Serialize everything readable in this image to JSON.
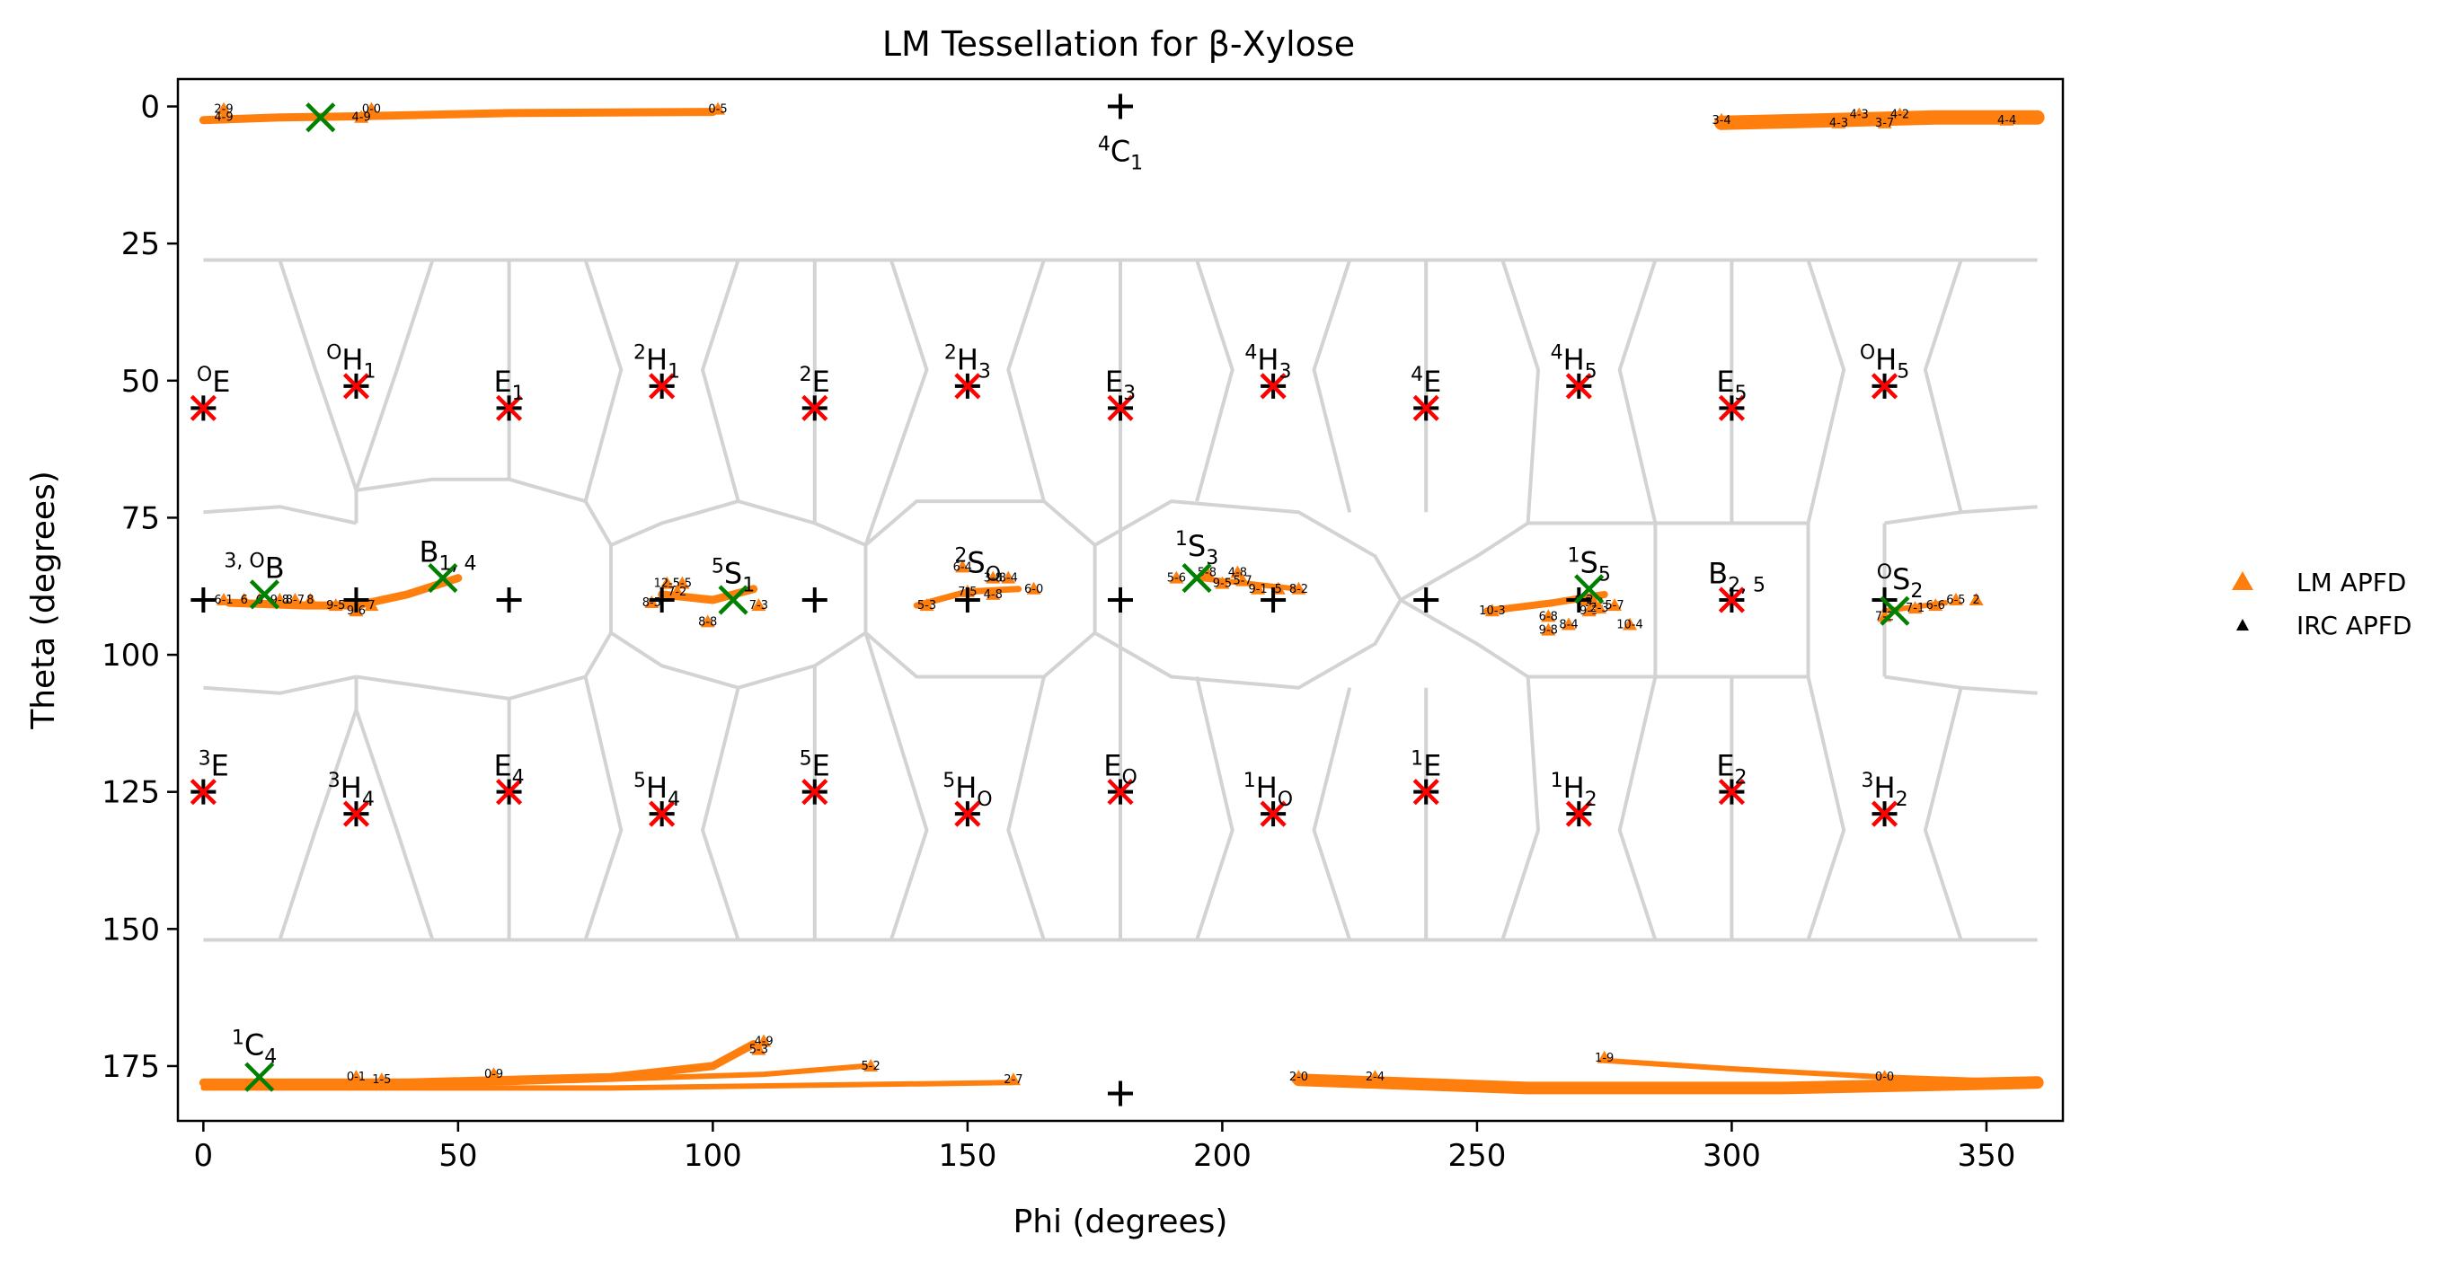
{
  "chart_data": {
    "type": "scatter",
    "title": "LM Tessellation for β-Xylose",
    "xlabel": "Phi (degrees)",
    "ylabel": "Theta (degrees)",
    "xlim": [
      -5,
      365
    ],
    "ylim": [
      185,
      -5
    ],
    "y_inverted": true,
    "xticks": [
      0,
      50,
      100,
      150,
      200,
      250,
      300,
      350
    ],
    "yticks": [
      0,
      25,
      50,
      75,
      100,
      125,
      150,
      175
    ],
    "grid": false,
    "legend_placement": "outside-right",
    "legend": [
      {
        "name": "LM APFD",
        "marker": "triangle",
        "color": "#ff7f0e"
      },
      {
        "name": "IRC APFD",
        "marker": "triangle-small",
        "color": "#000000"
      }
    ],
    "colors": {
      "tessellation": "#d3d3d3",
      "lm_apfd": "#ff7f0e",
      "reference": "#000000",
      "cluster_center": "#ff0000",
      "pathway_point": "#008000"
    },
    "pucker_labels": [
      {
        "sup": "4",
        "main": "C",
        "sub": "1",
        "x": 180,
        "y": 10
      },
      {
        "sup": "1",
        "main": "C",
        "sub": "4",
        "x": 10,
        "y": 173
      },
      {
        "sup": "O",
        "main": "E",
        "sub": "",
        "x": 2,
        "y": 52
      },
      {
        "sup": "O",
        "main": "H",
        "sub": "1",
        "x": 29,
        "y": 48
      },
      {
        "sup": "",
        "main": "E",
        "sub": "1",
        "x": 60,
        "y": 52
      },
      {
        "sup": "2",
        "main": "H",
        "sub": "1",
        "x": 89,
        "y": 48
      },
      {
        "sup": "2",
        "main": "E",
        "sub": "",
        "x": 120,
        "y": 52
      },
      {
        "sup": "2",
        "main": "H",
        "sub": "3",
        "x": 150,
        "y": 48
      },
      {
        "sup": "",
        "main": "E",
        "sub": "3",
        "x": 180,
        "y": 52
      },
      {
        "sup": "4",
        "main": "H",
        "sub": "3",
        "x": 209,
        "y": 48
      },
      {
        "sup": "4",
        "main": "E",
        "sub": "",
        "x": 240,
        "y": 52
      },
      {
        "sup": "4",
        "main": "H",
        "sub": "5",
        "x": 269,
        "y": 48
      },
      {
        "sup": "",
        "main": "E",
        "sub": "5",
        "x": 300,
        "y": 52
      },
      {
        "sup": "O",
        "main": "H",
        "sub": "5",
        "x": 330,
        "y": 48
      },
      {
        "sup": "3, O",
        "main": "B",
        "sub": "",
        "x": 10,
        "y": 86
      },
      {
        "sup": "",
        "main": "B",
        "sub": "1, 4",
        "x": 48,
        "y": 83
      },
      {
        "sup": "5",
        "main": "S",
        "sub": "1",
        "x": 104,
        "y": 87
      },
      {
        "sup": "2",
        "main": "S",
        "sub": "O",
        "x": 152,
        "y": 85
      },
      {
        "sup": "1",
        "main": "S",
        "sub": "3",
        "x": 195,
        "y": 82
      },
      {
        "sup": "1",
        "main": "S",
        "sub": "5",
        "x": 272,
        "y": 85
      },
      {
        "sup": "",
        "main": "B",
        "sub": "2, 5",
        "x": 301,
        "y": 87
      },
      {
        "sup": "O",
        "main": "S",
        "sub": "2",
        "x": 333,
        "y": 88
      },
      {
        "sup": "3",
        "main": "E",
        "sub": "",
        "x": 2,
        "y": 122
      },
      {
        "sup": "3",
        "main": "H",
        "sub": "4",
        "x": 29,
        "y": 126
      },
      {
        "sup": "",
        "main": "E",
        "sub": "4",
        "x": 60,
        "y": 122
      },
      {
        "sup": "5",
        "main": "H",
        "sub": "4",
        "x": 89,
        "y": 126
      },
      {
        "sup": "5",
        "main": "E",
        "sub": "",
        "x": 120,
        "y": 122
      },
      {
        "sup": "5",
        "main": "H",
        "sub": "O",
        "x": 150,
        "y": 126
      },
      {
        "sup": "",
        "main": "E",
        "sub": "O",
        "x": 180,
        "y": 122
      },
      {
        "sup": "1",
        "main": "H",
        "sub": "O",
        "x": 209,
        "y": 126
      },
      {
        "sup": "1",
        "main": "E",
        "sub": "",
        "x": 240,
        "y": 122
      },
      {
        "sup": "1",
        "main": "H",
        "sub": "2",
        "x": 269,
        "y": 126
      },
      {
        "sup": "",
        "main": "E",
        "sub": "2",
        "x": 300,
        "y": 122
      },
      {
        "sup": "3",
        "main": "H",
        "sub": "2",
        "x": 330,
        "y": 126
      }
    ],
    "reference_points": [
      {
        "x": 180,
        "y": 0
      },
      {
        "x": 180,
        "y": 180
      },
      {
        "x": 0,
        "y": 55
      },
      {
        "x": 30,
        "y": 51
      },
      {
        "x": 60,
        "y": 55
      },
      {
        "x": 90,
        "y": 51
      },
      {
        "x": 120,
        "y": 55
      },
      {
        "x": 150,
        "y": 51
      },
      {
        "x": 180,
        "y": 55
      },
      {
        "x": 210,
        "y": 51
      },
      {
        "x": 240,
        "y": 55
      },
      {
        "x": 270,
        "y": 51
      },
      {
        "x": 300,
        "y": 55
      },
      {
        "x": 330,
        "y": 51
      },
      {
        "x": 0,
        "y": 90
      },
      {
        "x": 30,
        "y": 90
      },
      {
        "x": 60,
        "y": 90
      },
      {
        "x": 90,
        "y": 90
      },
      {
        "x": 120,
        "y": 90
      },
      {
        "x": 150,
        "y": 90
      },
      {
        "x": 180,
        "y": 90
      },
      {
        "x": 210,
        "y": 90
      },
      {
        "x": 240,
        "y": 90
      },
      {
        "x": 270,
        "y": 90
      },
      {
        "x": 300,
        "y": 90
      },
      {
        "x": 330,
        "y": 90
      },
      {
        "x": 0,
        "y": 125
      },
      {
        "x": 30,
        "y": 129
      },
      {
        "x": 60,
        "y": 125
      },
      {
        "x": 90,
        "y": 129
      },
      {
        "x": 120,
        "y": 125
      },
      {
        "x": 150,
        "y": 129
      },
      {
        "x": 180,
        "y": 125
      },
      {
        "x": 210,
        "y": 129
      },
      {
        "x": 240,
        "y": 125
      },
      {
        "x": 270,
        "y": 129
      },
      {
        "x": 300,
        "y": 125
      },
      {
        "x": 330,
        "y": 129
      }
    ],
    "red_x_points": [
      {
        "x": 0,
        "y": 55
      },
      {
        "x": 30,
        "y": 51
      },
      {
        "x": 60,
        "y": 55
      },
      {
        "x": 90,
        "y": 51
      },
      {
        "x": 120,
        "y": 55
      },
      {
        "x": 150,
        "y": 51
      },
      {
        "x": 180,
        "y": 55
      },
      {
        "x": 210,
        "y": 51
      },
      {
        "x": 240,
        "y": 55
      },
      {
        "x": 270,
        "y": 51
      },
      {
        "x": 300,
        "y": 55
      },
      {
        "x": 330,
        "y": 51
      },
      {
        "x": 300,
        "y": 90
      },
      {
        "x": 0,
        "y": 125
      },
      {
        "x": 30,
        "y": 129
      },
      {
        "x": 60,
        "y": 125
      },
      {
        "x": 90,
        "y": 129
      },
      {
        "x": 120,
        "y": 125
      },
      {
        "x": 150,
        "y": 129
      },
      {
        "x": 180,
        "y": 125
      },
      {
        "x": 210,
        "y": 129
      },
      {
        "x": 240,
        "y": 125
      },
      {
        "x": 270,
        "y": 129
      },
      {
        "x": 300,
        "y": 125
      },
      {
        "x": 330,
        "y": 129
      }
    ],
    "green_x_points": [
      {
        "x": 23,
        "y": 2
      },
      {
        "x": 11,
        "y": 177
      },
      {
        "x": 12,
        "y": 89
      },
      {
        "x": 47,
        "y": 86
      },
      {
        "x": 104,
        "y": 90
      },
      {
        "x": 195,
        "y": 86
      },
      {
        "x": 332,
        "y": 92
      },
      {
        "x": 272,
        "y": 88
      }
    ],
    "lm_paths": [
      {
        "points": [
          [
            0,
            2.5
          ],
          [
            15,
            2
          ],
          [
            30,
            1.8
          ],
          [
            60,
            1.2
          ],
          [
            100,
            1.0
          ]
        ],
        "width": 9
      },
      {
        "points": [
          [
            298,
            3
          ],
          [
            320,
            2.5
          ],
          [
            340,
            2
          ],
          [
            360,
            2
          ]
        ],
        "width": 16
      },
      {
        "points": [
          [
            0,
            178
          ],
          [
            40,
            178
          ],
          [
            80,
            177
          ],
          [
            100,
            175
          ],
          [
            108,
            171
          ]
        ],
        "width": 9
      },
      {
        "points": [
          [
            0,
            178.5
          ],
          [
            60,
            178
          ],
          [
            110,
            176.5
          ],
          [
            130,
            175
          ]
        ],
        "width": 6
      },
      {
        "points": [
          [
            0,
            179
          ],
          [
            80,
            179
          ],
          [
            159,
            178
          ]
        ],
        "width": 6
      },
      {
        "points": [
          [
            215,
            177.5
          ],
          [
            260,
            179
          ],
          [
            310,
            179
          ],
          [
            360,
            178
          ]
        ],
        "width": 14
      },
      {
        "points": [
          [
            275,
            174
          ],
          [
            300,
            175.5
          ],
          [
            330,
            177
          ],
          [
            360,
            178
          ]
        ],
        "width": 6
      },
      {
        "points": [
          [
            5,
            90.5
          ],
          [
            20,
            91
          ],
          [
            30,
            91
          ],
          [
            40,
            89
          ],
          [
            50,
            86
          ]
        ],
        "width": 9
      },
      {
        "points": [
          [
            90,
            89
          ],
          [
            100,
            90
          ],
          [
            108,
            88
          ]
        ],
        "width": 9
      },
      {
        "points": [
          [
            140,
            91
          ],
          [
            150,
            88.5
          ],
          [
            160,
            88
          ]
        ],
        "width": 7
      },
      {
        "points": [
          [
            195,
            86
          ],
          [
            205,
            87
          ],
          [
            215,
            88
          ]
        ],
        "width": 6
      },
      {
        "points": [
          [
            252,
            92
          ],
          [
            265,
            90.5
          ],
          [
            275,
            89
          ]
        ],
        "width": 8
      },
      {
        "points": [
          [
            330,
            92
          ],
          [
            342,
            90.5
          ]
        ],
        "width": 6
      }
    ],
    "lm_apfd_labels": [
      {
        "text": "2-9",
        "x": 4,
        "y": 0.5
      },
      {
        "text": "4-9",
        "x": 4,
        "y": 2
      },
      {
        "text": "0-0",
        "x": 33,
        "y": 0.5
      },
      {
        "text": "4-9",
        "x": 31,
        "y": 2
      },
      {
        "text": "0-5",
        "x": 101,
        "y": 0.5
      },
      {
        "text": "3-4",
        "x": 298,
        "y": 2.5
      },
      {
        "text": "4-3",
        "x": 321,
        "y": 3
      },
      {
        "text": "4-3",
        "x": 325,
        "y": 1.5
      },
      {
        "text": "3-7",
        "x": 330,
        "y": 3
      },
      {
        "text": "4-2",
        "x": 333,
        "y": 1.5
      },
      {
        "text": "4-4",
        "x": 354,
        "y": 2.5
      },
      {
        "text": "0-1",
        "x": 30,
        "y": 177
      },
      {
        "text": "1-5",
        "x": 35,
        "y": 177.5
      },
      {
        "text": "0-9",
        "x": 57,
        "y": 176.5
      },
      {
        "text": "4-9",
        "x": 110,
        "y": 170.5
      },
      {
        "text": "5-3",
        "x": 109,
        "y": 172
      },
      {
        "text": "5-2",
        "x": 131,
        "y": 175
      },
      {
        "text": "2-7",
        "x": 159,
        "y": 177.5
      },
      {
        "text": "2-0",
        "x": 215,
        "y": 177
      },
      {
        "text": "2-4",
        "x": 230,
        "y": 177
      },
      {
        "text": "1-9",
        "x": 275,
        "y": 173.5
      },
      {
        "text": "0-0",
        "x": 330,
        "y": 177
      },
      {
        "text": "6-1",
        "x": 4,
        "y": 90
      },
      {
        "text": "6",
        "x": 8,
        "y": 90
      },
      {
        "text": "6",
        "x": 11,
        "y": 90
      },
      {
        "text": "9-8",
        "x": 15,
        "y": 90
      },
      {
        "text": "8-7",
        "x": 18,
        "y": 90
      },
      {
        "text": "8",
        "x": 21,
        "y": 90
      },
      {
        "text": "9-5",
        "x": 26,
        "y": 91
      },
      {
        "text": "9-6",
        "x": 30,
        "y": 92
      },
      {
        "text": "7",
        "x": 33,
        "y": 91
      },
      {
        "text": "8-5",
        "x": 88,
        "y": 90.5
      },
      {
        "text": "12-5",
        "x": 91,
        "y": 87
      },
      {
        "text": "5-5",
        "x": 94,
        "y": 87
      },
      {
        "text": "7-2",
        "x": 93,
        "y": 88.5
      },
      {
        "text": "8-8",
        "x": 99,
        "y": 94
      },
      {
        "text": "7-3",
        "x": 109,
        "y": 91
      },
      {
        "text": "6-4",
        "x": 149,
        "y": 84
      },
      {
        "text": "3-8",
        "x": 155,
        "y": 86
      },
      {
        "text": "8-4",
        "x": 158,
        "y": 86
      },
      {
        "text": "7-5",
        "x": 150,
        "y": 88.5
      },
      {
        "text": "4-8",
        "x": 155,
        "y": 89
      },
      {
        "text": "6-0",
        "x": 163,
        "y": 88
      },
      {
        "text": "5-3",
        "x": 142,
        "y": 91
      },
      {
        "text": "5-6",
        "x": 191,
        "y": 86
      },
      {
        "text": "5-8",
        "x": 197,
        "y": 85
      },
      {
        "text": "4-8",
        "x": 203,
        "y": 85
      },
      {
        "text": "9-5",
        "x": 200,
        "y": 87
      },
      {
        "text": "5-7",
        "x": 204,
        "y": 86.5
      },
      {
        "text": "9-1",
        "x": 207,
        "y": 88
      },
      {
        "text": "5",
        "x": 211,
        "y": 88
      },
      {
        "text": "8-2",
        "x": 215,
        "y": 88
      },
      {
        "text": "10-3",
        "x": 253,
        "y": 92
      },
      {
        "text": "6-8",
        "x": 264,
        "y": 93
      },
      {
        "text": "8-4",
        "x": 268,
        "y": 94.5
      },
      {
        "text": "9-8",
        "x": 264,
        "y": 95.5
      },
      {
        "text": "6-2",
        "x": 271,
        "y": 90
      },
      {
        "text": "5-2",
        "x": 273,
        "y": 90.5
      },
      {
        "text": "9-3",
        "x": 272,
        "y": 92
      },
      {
        "text": "2-3",
        "x": 274,
        "y": 91.5
      },
      {
        "text": "5-7",
        "x": 277,
        "y": 91
      },
      {
        "text": "10-4",
        "x": 280,
        "y": 94.5
      },
      {
        "text": "7-2",
        "x": 330,
        "y": 93
      },
      {
        "text": "7-1",
        "x": 336,
        "y": 91.5
      },
      {
        "text": "6-6",
        "x": 340,
        "y": 91
      },
      {
        "text": "6-5",
        "x": 344,
        "y": 90
      },
      {
        "text": "2",
        "x": 348,
        "y": 90
      }
    ]
  }
}
